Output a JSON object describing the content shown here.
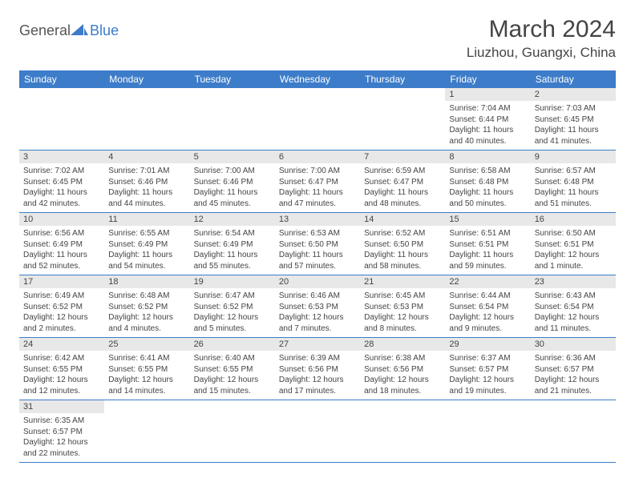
{
  "logo": {
    "general": "General",
    "blue": "Blue",
    "shape_color": "#3d7cc9"
  },
  "header": {
    "month": "March 2024",
    "location": "Liuzhou, Guangxi, China"
  },
  "colors": {
    "header_bg": "#3d7cc9",
    "header_text": "#ffffff",
    "daynum_bg": "#e8e8e8",
    "cell_border": "#3d7cc9",
    "text": "#444444"
  },
  "day_headers": [
    "Sunday",
    "Monday",
    "Tuesday",
    "Wednesday",
    "Thursday",
    "Friday",
    "Saturday"
  ],
  "weeks": [
    [
      null,
      null,
      null,
      null,
      null,
      {
        "n": "1",
        "sunrise": "Sunrise: 7:04 AM",
        "sunset": "Sunset: 6:44 PM",
        "daylight1": "Daylight: 11 hours",
        "daylight2": "and 40 minutes."
      },
      {
        "n": "2",
        "sunrise": "Sunrise: 7:03 AM",
        "sunset": "Sunset: 6:45 PM",
        "daylight1": "Daylight: 11 hours",
        "daylight2": "and 41 minutes."
      }
    ],
    [
      {
        "n": "3",
        "sunrise": "Sunrise: 7:02 AM",
        "sunset": "Sunset: 6:45 PM",
        "daylight1": "Daylight: 11 hours",
        "daylight2": "and 42 minutes."
      },
      {
        "n": "4",
        "sunrise": "Sunrise: 7:01 AM",
        "sunset": "Sunset: 6:46 PM",
        "daylight1": "Daylight: 11 hours",
        "daylight2": "and 44 minutes."
      },
      {
        "n": "5",
        "sunrise": "Sunrise: 7:00 AM",
        "sunset": "Sunset: 6:46 PM",
        "daylight1": "Daylight: 11 hours",
        "daylight2": "and 45 minutes."
      },
      {
        "n": "6",
        "sunrise": "Sunrise: 7:00 AM",
        "sunset": "Sunset: 6:47 PM",
        "daylight1": "Daylight: 11 hours",
        "daylight2": "and 47 minutes."
      },
      {
        "n": "7",
        "sunrise": "Sunrise: 6:59 AM",
        "sunset": "Sunset: 6:47 PM",
        "daylight1": "Daylight: 11 hours",
        "daylight2": "and 48 minutes."
      },
      {
        "n": "8",
        "sunrise": "Sunrise: 6:58 AM",
        "sunset": "Sunset: 6:48 PM",
        "daylight1": "Daylight: 11 hours",
        "daylight2": "and 50 minutes."
      },
      {
        "n": "9",
        "sunrise": "Sunrise: 6:57 AM",
        "sunset": "Sunset: 6:48 PM",
        "daylight1": "Daylight: 11 hours",
        "daylight2": "and 51 minutes."
      }
    ],
    [
      {
        "n": "10",
        "sunrise": "Sunrise: 6:56 AM",
        "sunset": "Sunset: 6:49 PM",
        "daylight1": "Daylight: 11 hours",
        "daylight2": "and 52 minutes."
      },
      {
        "n": "11",
        "sunrise": "Sunrise: 6:55 AM",
        "sunset": "Sunset: 6:49 PM",
        "daylight1": "Daylight: 11 hours",
        "daylight2": "and 54 minutes."
      },
      {
        "n": "12",
        "sunrise": "Sunrise: 6:54 AM",
        "sunset": "Sunset: 6:49 PM",
        "daylight1": "Daylight: 11 hours",
        "daylight2": "and 55 minutes."
      },
      {
        "n": "13",
        "sunrise": "Sunrise: 6:53 AM",
        "sunset": "Sunset: 6:50 PM",
        "daylight1": "Daylight: 11 hours",
        "daylight2": "and 57 minutes."
      },
      {
        "n": "14",
        "sunrise": "Sunrise: 6:52 AM",
        "sunset": "Sunset: 6:50 PM",
        "daylight1": "Daylight: 11 hours",
        "daylight2": "and 58 minutes."
      },
      {
        "n": "15",
        "sunrise": "Sunrise: 6:51 AM",
        "sunset": "Sunset: 6:51 PM",
        "daylight1": "Daylight: 11 hours",
        "daylight2": "and 59 minutes."
      },
      {
        "n": "16",
        "sunrise": "Sunrise: 6:50 AM",
        "sunset": "Sunset: 6:51 PM",
        "daylight1": "Daylight: 12 hours",
        "daylight2": "and 1 minute."
      }
    ],
    [
      {
        "n": "17",
        "sunrise": "Sunrise: 6:49 AM",
        "sunset": "Sunset: 6:52 PM",
        "daylight1": "Daylight: 12 hours",
        "daylight2": "and 2 minutes."
      },
      {
        "n": "18",
        "sunrise": "Sunrise: 6:48 AM",
        "sunset": "Sunset: 6:52 PM",
        "daylight1": "Daylight: 12 hours",
        "daylight2": "and 4 minutes."
      },
      {
        "n": "19",
        "sunrise": "Sunrise: 6:47 AM",
        "sunset": "Sunset: 6:52 PM",
        "daylight1": "Daylight: 12 hours",
        "daylight2": "and 5 minutes."
      },
      {
        "n": "20",
        "sunrise": "Sunrise: 6:46 AM",
        "sunset": "Sunset: 6:53 PM",
        "daylight1": "Daylight: 12 hours",
        "daylight2": "and 7 minutes."
      },
      {
        "n": "21",
        "sunrise": "Sunrise: 6:45 AM",
        "sunset": "Sunset: 6:53 PM",
        "daylight1": "Daylight: 12 hours",
        "daylight2": "and 8 minutes."
      },
      {
        "n": "22",
        "sunrise": "Sunrise: 6:44 AM",
        "sunset": "Sunset: 6:54 PM",
        "daylight1": "Daylight: 12 hours",
        "daylight2": "and 9 minutes."
      },
      {
        "n": "23",
        "sunrise": "Sunrise: 6:43 AM",
        "sunset": "Sunset: 6:54 PM",
        "daylight1": "Daylight: 12 hours",
        "daylight2": "and 11 minutes."
      }
    ],
    [
      {
        "n": "24",
        "sunrise": "Sunrise: 6:42 AM",
        "sunset": "Sunset: 6:55 PM",
        "daylight1": "Daylight: 12 hours",
        "daylight2": "and 12 minutes."
      },
      {
        "n": "25",
        "sunrise": "Sunrise: 6:41 AM",
        "sunset": "Sunset: 6:55 PM",
        "daylight1": "Daylight: 12 hours",
        "daylight2": "and 14 minutes."
      },
      {
        "n": "26",
        "sunrise": "Sunrise: 6:40 AM",
        "sunset": "Sunset: 6:55 PM",
        "daylight1": "Daylight: 12 hours",
        "daylight2": "and 15 minutes."
      },
      {
        "n": "27",
        "sunrise": "Sunrise: 6:39 AM",
        "sunset": "Sunset: 6:56 PM",
        "daylight1": "Daylight: 12 hours",
        "daylight2": "and 17 minutes."
      },
      {
        "n": "28",
        "sunrise": "Sunrise: 6:38 AM",
        "sunset": "Sunset: 6:56 PM",
        "daylight1": "Daylight: 12 hours",
        "daylight2": "and 18 minutes."
      },
      {
        "n": "29",
        "sunrise": "Sunrise: 6:37 AM",
        "sunset": "Sunset: 6:57 PM",
        "daylight1": "Daylight: 12 hours",
        "daylight2": "and 19 minutes."
      },
      {
        "n": "30",
        "sunrise": "Sunrise: 6:36 AM",
        "sunset": "Sunset: 6:57 PM",
        "daylight1": "Daylight: 12 hours",
        "daylight2": "and 21 minutes."
      }
    ],
    [
      {
        "n": "31",
        "sunrise": "Sunrise: 6:35 AM",
        "sunset": "Sunset: 6:57 PM",
        "daylight1": "Daylight: 12 hours",
        "daylight2": "and 22 minutes."
      },
      null,
      null,
      null,
      null,
      null,
      null
    ]
  ]
}
